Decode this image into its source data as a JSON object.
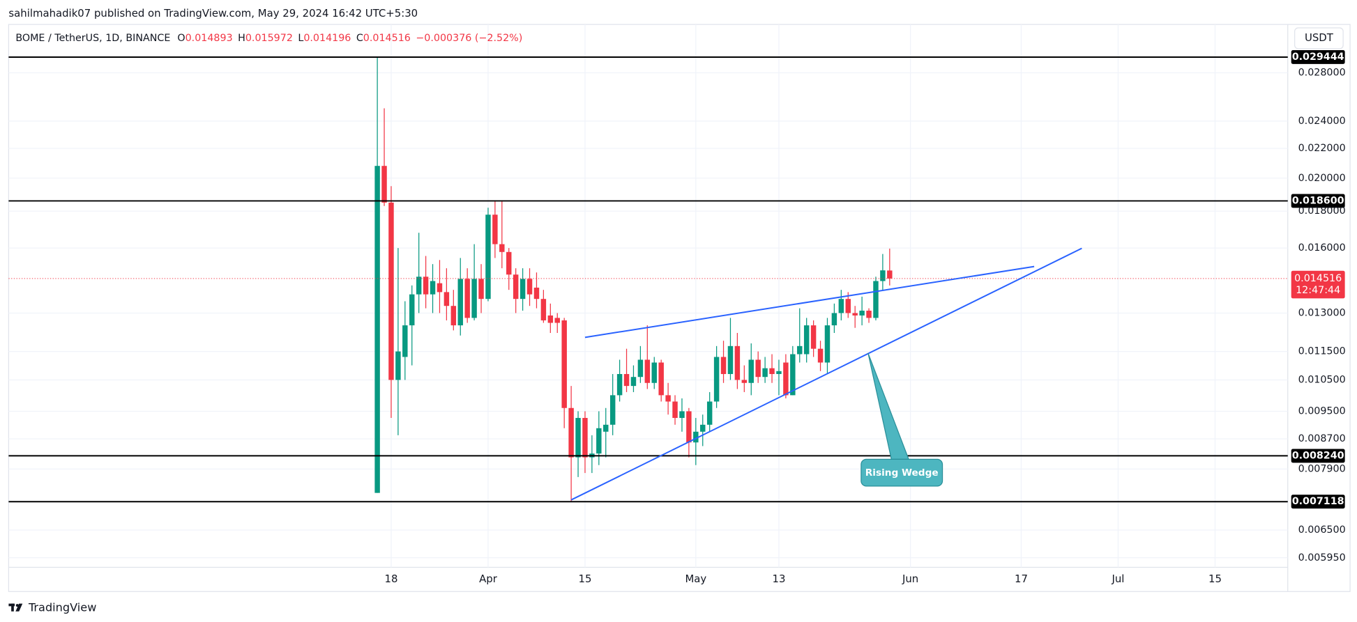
{
  "chart_data": {
    "type": "candlestick",
    "publisher": "sahilmahadik07 published on TradingView.com, May 29, 2024 16:42 UTC+5:30",
    "symbol": "BOME / TetherUS, 1D, BINANCE",
    "ohlc_labels": [
      "O",
      "H",
      "L",
      "C"
    ],
    "change": "−0.000376 (−2.52%)",
    "currency": "USDT",
    "countdown": "12:47:44",
    "annotation": "Rising Wedge",
    "brand": "TradingView",
    "up_color": "#089981",
    "down_color": "#f23645",
    "level_color": "#000000",
    "grid": true,
    "log_scale": true,
    "ylim": [
      0.005357,
      0.03268
    ],
    "yticks": [
      {
        "value": 0.028,
        "label": "0.028000"
      },
      {
        "value": 0.024,
        "label": "0.024000"
      },
      {
        "value": 0.022,
        "label": "0.022000"
      },
      {
        "value": 0.02,
        "label": "0.020000"
      },
      {
        "value": 0.018,
        "label": "0.018000"
      },
      {
        "value": 0.016,
        "label": "0.016000"
      },
      {
        "value": 0.013,
        "label": "0.013000"
      },
      {
        "value": 0.0115,
        "label": "0.011500"
      },
      {
        "value": 0.0105,
        "label": "0.010500"
      },
      {
        "value": 0.0095,
        "label": "0.009500"
      },
      {
        "value": 0.0087,
        "label": "0.008700"
      },
      {
        "value": 0.0079,
        "label": "0.007900"
      },
      {
        "value": 0.0065,
        "label": "0.006500"
      },
      {
        "value": 0.00595,
        "label": "0.005950"
      }
    ],
    "levels": [
      0.029444,
      {
        "value": 0.0186,
        "label": "0.018600"
      },
      {
        "value": 0.00824,
        "label": "0.008240"
      },
      0.007118
    ],
    "categories": [
      null,
      null,
      "18",
      null,
      null,
      null,
      null,
      null,
      null,
      null,
      null,
      null,
      null,
      null,
      null,
      null,
      "Apr",
      null,
      null,
      null,
      null,
      null,
      null,
      null,
      null,
      null,
      null,
      null,
      null,
      null,
      "15",
      null,
      null,
      null,
      null,
      null,
      null,
      null,
      null,
      null,
      null,
      null,
      null,
      null,
      null,
      null,
      "May",
      null,
      null,
      null,
      null,
      null,
      null,
      null,
      null,
      null,
      null,
      null,
      "13",
      null,
      null,
      null,
      null,
      null,
      null,
      null,
      null,
      null,
      null,
      null,
      null,
      null,
      null,
      null,
      null,
      null,
      null,
      "Jun",
      null,
      null,
      null,
      null,
      null,
      null,
      null,
      null,
      null,
      null,
      null,
      null,
      null,
      null,
      null,
      "17",
      null,
      null,
      null,
      null,
      null,
      null,
      null,
      null,
      null,
      null,
      null,
      null,
      null,
      "Jul",
      null,
      null,
      null,
      null,
      null,
      null,
      null,
      null,
      null,
      null,
      null,
      null,
      null,
      "15"
    ],
    "ohlc": [
      [
        0.00732,
        0.029444,
        0.00732,
        0.0208
      ],
      [
        0.0208,
        0.025,
        0.0183,
        0.0185
      ],
      [
        0.0185,
        0.0195,
        0.0093,
        0.0105
      ],
      [
        0.0105,
        0.016,
        0.0088,
        0.0115
      ],
      [
        0.0113,
        0.0135,
        0.0105,
        0.0125
      ],
      [
        0.0125,
        0.0142,
        0.011,
        0.0138
      ],
      [
        0.0138,
        0.0168,
        0.013,
        0.0146
      ],
      [
        0.0146,
        0.0156,
        0.0132,
        0.0138
      ],
      [
        0.0138,
        0.0152,
        0.013,
        0.0144
      ],
      [
        0.0143,
        0.0154,
        0.013,
        0.0139
      ],
      [
        0.0139,
        0.015,
        0.0127,
        0.0133
      ],
      [
        0.0133,
        0.014,
        0.0123,
        0.0125
      ],
      [
        0.0125,
        0.0155,
        0.0121,
        0.0145
      ],
      [
        0.0145,
        0.015,
        0.0126,
        0.0128
      ],
      [
        0.0128,
        0.0162,
        0.0127,
        0.0145
      ],
      [
        0.0145,
        0.0152,
        0.013,
        0.0136
      ],
      [
        0.0136,
        0.0182,
        0.0135,
        0.0178
      ],
      [
        0.0178,
        0.0186,
        0.0155,
        0.0162
      ],
      [
        0.0162,
        0.0186,
        0.015,
        0.0158
      ],
      [
        0.0158,
        0.016,
        0.014,
        0.0147
      ],
      [
        0.0147,
        0.015,
        0.013,
        0.0136
      ],
      [
        0.0136,
        0.015,
        0.0131,
        0.0145
      ],
      [
        0.0145,
        0.015,
        0.0133,
        0.0138
      ],
      [
        0.0141,
        0.0148,
        0.0132,
        0.0136
      ],
      [
        0.0136,
        0.014,
        0.0126,
        0.0127
      ],
      [
        0.0129,
        0.0134,
        0.0122,
        0.0126
      ],
      [
        0.0128,
        0.013,
        0.0122,
        0.0126
      ],
      [
        0.0127,
        0.0128,
        0.009,
        0.0096
      ],
      [
        0.0096,
        0.0103,
        0.007118,
        0.0082
      ],
      [
        0.0082,
        0.0095,
        0.0077,
        0.0093
      ],
      [
        0.0093,
        0.0095,
        0.0078,
        0.0082
      ],
      [
        0.0082,
        0.0088,
        0.0078,
        0.0083
      ],
      [
        0.0083,
        0.0095,
        0.008,
        0.009
      ],
      [
        0.0089,
        0.0096,
        0.0082,
        0.0091
      ],
      [
        0.0091,
        0.0107,
        0.0088,
        0.01
      ],
      [
        0.01,
        0.0112,
        0.0098,
        0.0107
      ],
      [
        0.0107,
        0.0116,
        0.0101,
        0.0103
      ],
      [
        0.0103,
        0.011,
        0.0101,
        0.0106
      ],
      [
        0.0106,
        0.0117,
        0.0104,
        0.0112
      ],
      [
        0.0112,
        0.0125,
        0.0102,
        0.0104
      ],
      [
        0.0104,
        0.0113,
        0.0102,
        0.0111
      ],
      [
        0.0111,
        0.0112,
        0.0098,
        0.01
      ],
      [
        0.01,
        0.0104,
        0.0094,
        0.0098
      ],
      [
        0.0098,
        0.01,
        0.0091,
        0.0093
      ],
      [
        0.0093,
        0.0099,
        0.0089,
        0.0095
      ],
      [
        0.0095,
        0.0096,
        0.0082,
        0.0086
      ],
      [
        0.0086,
        0.0093,
        0.008,
        0.0089
      ],
      [
        0.0089,
        0.0094,
        0.0085,
        0.0091
      ],
      [
        0.0091,
        0.0101,
        0.0089,
        0.0098
      ],
      [
        0.0098,
        0.0117,
        0.0096,
        0.0113
      ],
      [
        0.0113,
        0.0119,
        0.0104,
        0.0107
      ],
      [
        0.0107,
        0.0128,
        0.0105,
        0.0117
      ],
      [
        0.0117,
        0.0122,
        0.0102,
        0.0105
      ],
      [
        0.0105,
        0.011,
        0.0101,
        0.0104
      ],
      [
        0.0104,
        0.0118,
        0.01,
        0.0112
      ],
      [
        0.0112,
        0.0115,
        0.0104,
        0.0106
      ],
      [
        0.0106,
        0.0113,
        0.0104,
        0.0109
      ],
      [
        0.0109,
        0.0114,
        0.0104,
        0.0107
      ],
      [
        0.0107,
        0.0112,
        0.01,
        0.0108
      ],
      [
        0.0111,
        0.0114,
        0.0099,
        0.01
      ],
      [
        0.01,
        0.0117,
        0.01,
        0.0114
      ],
      [
        0.0114,
        0.0132,
        0.0111,
        0.0117
      ],
      [
        0.0114,
        0.0128,
        0.0111,
        0.0125
      ],
      [
        0.0125,
        0.0127,
        0.0113,
        0.0116
      ],
      [
        0.0116,
        0.0119,
        0.0108,
        0.0111
      ],
      [
        0.0111,
        0.0128,
        0.0107,
        0.0125
      ],
      [
        0.0125,
        0.0134,
        0.0122,
        0.013
      ],
      [
        0.013,
        0.014,
        0.0127,
        0.0136
      ],
      [
        0.0136,
        0.0139,
        0.0128,
        0.013
      ],
      [
        0.013,
        0.0133,
        0.0124,
        0.0129
      ],
      [
        0.0129,
        0.0137,
        0.0125,
        0.0131
      ],
      [
        0.0131,
        0.0132,
        0.0126,
        0.0128
      ],
      [
        0.0128,
        0.0146,
        0.0127,
        0.0144
      ],
      [
        0.0144,
        0.0157,
        0.014,
        0.0149
      ],
      [
        0.014893,
        0.015972,
        0.014196,
        0.014516
      ],
      null,
      null,
      null,
      null,
      null,
      null,
      null,
      null,
      null,
      null,
      null,
      null,
      null,
      null,
      null,
      null,
      null,
      null,
      null,
      null,
      null,
      null,
      null,
      null,
      null,
      null,
      null,
      null,
      null,
      null,
      null,
      null,
      null,
      null,
      null,
      null,
      null,
      null,
      null,
      null,
      null,
      null,
      null,
      null,
      null,
      null,
      null
    ]
  }
}
